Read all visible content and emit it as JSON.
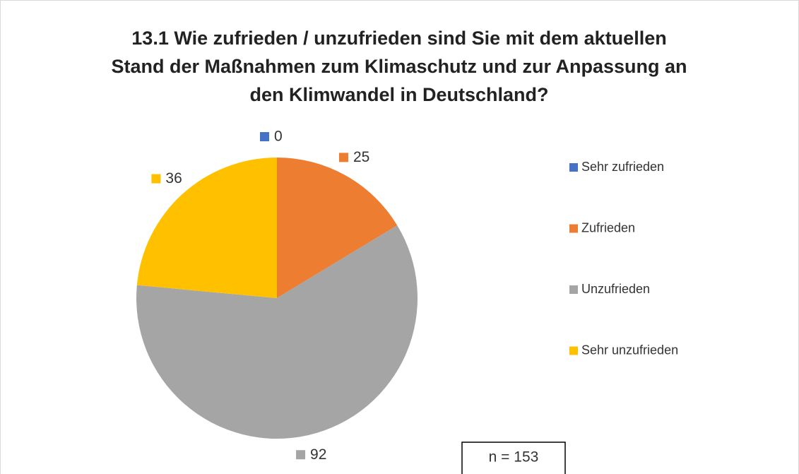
{
  "chart_data": {
    "type": "pie",
    "title": "13.1 Wie zufrieden / unzufrieden sind Sie mit dem aktuellen Stand der Maßnahmen zum Klimaschutz und zur Anpassung an den Klimwandel in Deutschland?",
    "categories": [
      "Sehr zufrieden",
      "Zufrieden",
      "Unzufrieden",
      "Sehr unzufrieden"
    ],
    "values": [
      0,
      25,
      92,
      36
    ],
    "colors": [
      "#4472c4",
      "#ed7d31",
      "#a5a5a5",
      "#ffc000"
    ],
    "annotation": "n = 153",
    "legend": "right"
  }
}
